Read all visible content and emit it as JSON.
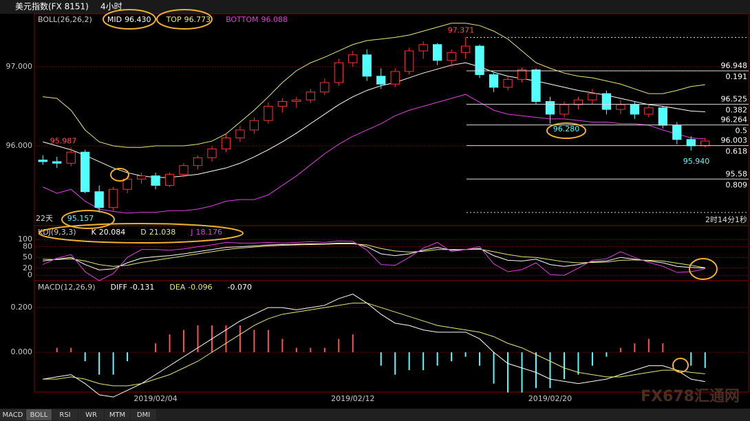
{
  "header": {
    "title": "美元指数(FX 8151)",
    "period": "4小时"
  },
  "tabs": [
    "MACD",
    "BOLL",
    "RSI",
    "WR",
    "MTM",
    "DMI"
  ],
  "watermark": "FX678汇通网",
  "chart_data": [
    {
      "type": "candlestick",
      "title": "BOLL(26,26,2)",
      "categories": [
        null,
        null,
        null,
        null,
        null,
        null,
        null,
        null,
        "2019/02/04",
        null,
        null,
        null,
        null,
        null,
        null,
        null,
        null,
        null,
        null,
        null,
        null,
        null,
        "2019/02/12",
        null,
        null,
        null,
        null,
        null,
        null,
        null,
        null,
        null,
        null,
        null,
        null,
        null,
        "2019/02/20",
        null,
        null,
        null,
        null,
        null,
        null,
        null,
        null,
        null,
        null,
        null
      ],
      "open": [
        95.82,
        95.8,
        95.78,
        95.92,
        95.42,
        95.22,
        95.45,
        95.58,
        95.62,
        95.5,
        95.64,
        95.75,
        95.85,
        95.96,
        96.1,
        96.2,
        96.32,
        96.5,
        96.56,
        96.58,
        96.68,
        96.8,
        97.05,
        97.15,
        96.88,
        96.78,
        96.94,
        97.2,
        97.28,
        97.08,
        97.18,
        97.26,
        96.9,
        96.74,
        96.84,
        96.96,
        96.56,
        96.4,
        96.52,
        96.58,
        96.66,
        96.46,
        96.52,
        96.4,
        96.48,
        96.26,
        96.08,
        96.0
      ],
      "high": [
        95.88,
        95.86,
        95.98,
        95.95,
        95.5,
        95.48,
        95.62,
        95.66,
        95.66,
        95.66,
        95.78,
        95.88,
        96.0,
        96.15,
        96.25,
        96.36,
        96.55,
        96.6,
        96.62,
        96.72,
        96.85,
        97.1,
        97.2,
        97.22,
        96.98,
        96.98,
        97.24,
        97.32,
        97.3,
        97.22,
        97.371,
        97.28,
        96.92,
        96.88,
        96.99,
        96.98,
        96.62,
        96.56,
        96.62,
        96.72,
        96.7,
        96.58,
        96.56,
        96.52,
        96.5,
        96.3,
        96.12,
        96.1
      ],
      "low": [
        95.76,
        95.72,
        95.74,
        95.4,
        95.157,
        95.18,
        95.4,
        95.52,
        95.45,
        95.48,
        95.6,
        95.7,
        95.8,
        95.92,
        96.05,
        96.15,
        96.28,
        96.42,
        96.48,
        96.54,
        96.64,
        96.76,
        97.0,
        96.82,
        96.72,
        96.74,
        96.9,
        97.1,
        97.02,
        97.0,
        97.1,
        96.86,
        96.68,
        96.7,
        96.8,
        96.52,
        96.28,
        96.36,
        96.46,
        96.52,
        96.4,
        96.4,
        96.34,
        96.36,
        96.22,
        96.02,
        95.94,
        95.98
      ],
      "close": [
        95.8,
        95.78,
        95.92,
        95.42,
        95.22,
        95.45,
        95.58,
        95.62,
        95.5,
        95.64,
        95.75,
        95.85,
        95.96,
        96.1,
        96.2,
        96.32,
        96.5,
        96.56,
        96.58,
        96.68,
        96.8,
        97.05,
        97.15,
        96.88,
        96.78,
        96.94,
        97.2,
        97.28,
        97.08,
        97.18,
        97.26,
        96.9,
        96.74,
        96.84,
        96.96,
        96.56,
        96.4,
        96.52,
        96.58,
        96.66,
        96.46,
        96.52,
        96.4,
        96.48,
        96.26,
        96.08,
        96.0,
        96.06
      ],
      "up_color": "#ff3232",
      "down_color": "#54ffff",
      "series": [
        {
          "name": "MID",
          "last_label": "96.430",
          "color": "#ffffff",
          "values": [
            96.05,
            96.0,
            95.95,
            95.88,
            95.8,
            95.72,
            95.66,
            95.62,
            95.6,
            95.6,
            95.62,
            95.64,
            95.68,
            95.72,
            95.78,
            95.86,
            95.95,
            96.05,
            96.16,
            96.28,
            96.4,
            96.52,
            96.62,
            96.7,
            96.76,
            96.8,
            96.86,
            96.92,
            96.97,
            97.02,
            97.05,
            97.0,
            96.93,
            96.88,
            96.85,
            96.82,
            96.78,
            96.74,
            96.7,
            96.67,
            96.64,
            96.6,
            96.56,
            96.52,
            96.5,
            96.47,
            96.44,
            96.43
          ]
        },
        {
          "name": "TOP",
          "last_label": "96.773",
          "color": "#e8e87a",
          "values": [
            96.62,
            96.6,
            96.45,
            96.2,
            96.05,
            96.0,
            95.98,
            95.98,
            96.0,
            96.0,
            96.0,
            96.02,
            96.06,
            96.15,
            96.3,
            96.45,
            96.62,
            96.8,
            96.95,
            97.05,
            97.12,
            97.2,
            97.28,
            97.33,
            97.35,
            97.37,
            97.4,
            97.45,
            97.5,
            97.55,
            97.55,
            97.52,
            97.45,
            97.35,
            97.2,
            97.05,
            96.98,
            96.92,
            96.88,
            96.86,
            96.82,
            96.78,
            96.72,
            96.66,
            96.66,
            96.7,
            96.75,
            96.773
          ]
        },
        {
          "name": "BOTTOM",
          "last_label": "96.088",
          "color": "#e040e0",
          "values": [
            95.48,
            95.4,
            95.45,
            95.3,
            95.2,
            95.17,
            95.15,
            95.16,
            95.16,
            95.18,
            95.18,
            95.2,
            95.24,
            95.3,
            95.32,
            95.32,
            95.38,
            95.5,
            95.62,
            95.76,
            95.9,
            96.02,
            96.12,
            96.2,
            96.28,
            96.38,
            96.45,
            96.5,
            96.55,
            96.6,
            96.65,
            96.55,
            96.45,
            96.4,
            96.38,
            96.36,
            96.34,
            96.34,
            96.32,
            96.3,
            96.3,
            96.28,
            96.28,
            96.26,
            96.2,
            96.15,
            96.1,
            96.088
          ]
        }
      ],
      "ylim": [
        94.991,
        97.652
      ],
      "yticks": [
        {
          "value": 96,
          "label": "96.000"
        },
        {
          "value": 97,
          "label": "97.000"
        }
      ],
      "grid": true,
      "fib_levels": [
        {
          "price": 96.948,
          "ratio": 0.191
        },
        {
          "price": 96.525,
          "ratio": 0.382
        },
        {
          "price": 96.264,
          "ratio": 0.5
        },
        {
          "price": 96.003,
          "ratio": 0.618
        },
        {
          "price": 95.58,
          "ratio": 0.809
        }
      ],
      "annotations": [
        {
          "value": 97.371,
          "label": "97.371",
          "color": "#ff5050"
        },
        {
          "value": 95.987,
          "label": "95.987",
          "color": "#ff5050"
        },
        {
          "value": 95.157,
          "label": "95.157",
          "color": "#54ffff"
        },
        {
          "value": 96.28,
          "label": "96.280",
          "color": "#54ffff"
        },
        {
          "value": 95.94,
          "label": "95.940",
          "color": "#54ffff"
        }
      ],
      "notes": [
        "22天",
        "2时14分1秒"
      ]
    },
    {
      "type": "line",
      "title": "KDJ(9,3,3)",
      "series": [
        {
          "name": "K",
          "last_label": "20.084",
          "color": "#ffffff",
          "values": [
            40,
            45,
            50,
            30,
            15,
            18,
            35,
            48,
            52,
            55,
            60,
            66,
            72,
            78,
            80,
            82,
            85,
            86,
            87,
            88,
            88,
            90,
            90,
            80,
            60,
            55,
            60,
            70,
            78,
            70,
            72,
            75,
            55,
            42,
            40,
            45,
            30,
            25,
            30,
            38,
            40,
            50,
            45,
            40,
            35,
            25,
            22,
            20.084
          ]
        },
        {
          "name": "D",
          "last_label": "21.038",
          "color": "#e8e87a",
          "values": [
            45,
            44,
            46,
            40,
            30,
            25,
            28,
            36,
            42,
            48,
            54,
            60,
            66,
            72,
            76,
            79,
            82,
            84,
            85,
            86,
            87,
            88,
            88,
            85,
            75,
            68,
            65,
            67,
            72,
            72,
            72,
            73,
            66,
            58,
            52,
            50,
            44,
            38,
            35,
            36,
            37,
            42,
            43,
            42,
            40,
            34,
            28,
            21.038
          ]
        },
        {
          "name": "J",
          "last_label": "18.176",
          "color": "#e040e0",
          "values": [
            30,
            48,
            58,
            10,
            -15,
            5,
            50,
            72,
            72,
            70,
            74,
            80,
            85,
            92,
            90,
            90,
            92,
            90,
            92,
            94,
            92,
            96,
            95,
            70,
            30,
            28,
            50,
            76,
            92,
            66,
            72,
            80,
            32,
            10,
            16,
            35,
            2,
            0,
            20,
            42,
            46,
            66,
            50,
            36,
            25,
            8,
            10,
            18.176
          ]
        }
      ],
      "ylim": [
        -15,
        135
      ],
      "yticks": [
        0,
        20,
        50,
        80,
        100
      ],
      "grid": true
    },
    {
      "type": "macd",
      "title": "MACD(12,26,9)",
      "histogram": {
        "last_label": "-0.070",
        "up_color": "#ff5050",
        "down_color": "#54ffff",
        "values": [
          0,
          0.02,
          0.02,
          -0.04,
          -0.1,
          -0.1,
          -0.04,
          0,
          0.04,
          0.08,
          0.1,
          0.12,
          0.12,
          0.12,
          0.12,
          0.1,
          0.1,
          0.06,
          0.02,
          0.02,
          0.02,
          0.06,
          0.08,
          0,
          -0.06,
          -0.1,
          -0.08,
          -0.08,
          -0.06,
          -0.04,
          -0.02,
          -0.06,
          -0.14,
          -0.18,
          -0.18,
          -0.16,
          -0.16,
          -0.12,
          -0.1,
          -0.06,
          -0.02,
          0.02,
          0.04,
          0.06,
          0.04,
          0,
          -0.06,
          -0.07
        ]
      },
      "series": [
        {
          "name": "DIFF",
          "last_label": "-0.131",
          "color": "#ffffff",
          "values": [
            -0.12,
            -0.11,
            -0.1,
            -0.14,
            -0.19,
            -0.2,
            -0.17,
            -0.14,
            -0.1,
            -0.06,
            -0.02,
            0.02,
            0.06,
            0.1,
            0.14,
            0.17,
            0.2,
            0.2,
            0.19,
            0.2,
            0.21,
            0.24,
            0.26,
            0.22,
            0.17,
            0.13,
            0.12,
            0.1,
            0.09,
            0.09,
            0.09,
            0.06,
            0.0,
            -0.05,
            -0.07,
            -0.09,
            -0.12,
            -0.13,
            -0.14,
            -0.13,
            -0.12,
            -0.1,
            -0.08,
            -0.06,
            -0.06,
            -0.08,
            -0.12,
            -0.131
          ]
        },
        {
          "name": "DEA",
          "last_label": "-0.096",
          "color": "#e8e87a",
          "values": [
            -0.12,
            -0.12,
            -0.11,
            -0.12,
            -0.14,
            -0.15,
            -0.15,
            -0.14,
            -0.12,
            -0.1,
            -0.07,
            -0.04,
            0.0,
            0.04,
            0.08,
            0.12,
            0.15,
            0.17,
            0.18,
            0.19,
            0.2,
            0.21,
            0.22,
            0.22,
            0.2,
            0.18,
            0.16,
            0.14,
            0.12,
            0.11,
            0.1,
            0.09,
            0.07,
            0.04,
            0.02,
            -0.01,
            -0.04,
            -0.07,
            -0.09,
            -0.1,
            -0.11,
            -0.11,
            -0.1,
            -0.09,
            -0.08,
            -0.08,
            -0.09,
            -0.096
          ]
        }
      ],
      "ylim": [
        -0.178,
        0.314
      ],
      "yticks": [
        {
          "value": 0,
          "label": "0.000"
        },
        {
          "value": 0.2,
          "label": "0.200"
        }
      ],
      "grid": true
    }
  ]
}
